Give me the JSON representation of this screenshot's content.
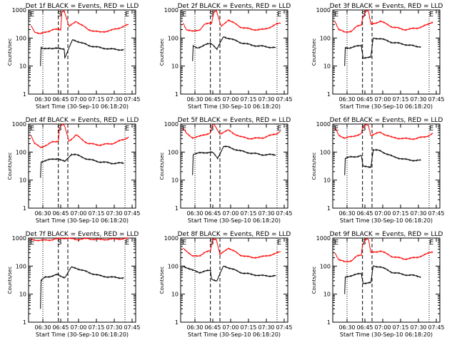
{
  "colors": {
    "background": "#ffffff",
    "axes": "#000000",
    "events": "#000000",
    "lld": "#ff0000"
  },
  "chart_data": [
    {
      "type": "line",
      "title": "Det 1f BLACK = Events, RED = LLD",
      "xlabel": "Start Time (30-Sep-10 06:18:20)",
      "ylabel": "Counts/sec",
      "xticks": [
        "06:30",
        "06:45",
        "07:00",
        "07:15",
        "07:30",
        "07:45"
      ],
      "yticks": [
        "1",
        "10",
        "100",
        "1000"
      ],
      "yscale": "log",
      "ylim": [
        1,
        1000
      ],
      "xlim_minutes": [
        0,
        90
      ],
      "markers": [
        "S",
        "E",
        "E"
      ],
      "series": [
        {
          "name": "Events",
          "color": "#000000",
          "x": [
            10,
            10.5,
            12,
            18,
            20,
            30,
            30.5,
            37,
            40,
            50,
            60,
            70,
            80
          ],
          "y": [
            10,
            45,
            40,
            45,
            42,
            42,
            20,
            85,
            80,
            55,
            45,
            40,
            38
          ]
        },
        {
          "name": "LLD",
          "color": "#ff0000",
          "x": [
            2,
            5,
            10,
            16,
            20,
            27,
            28,
            30,
            34,
            40,
            50,
            60,
            70,
            80,
            84
          ],
          "y": [
            280,
            170,
            140,
            170,
            200,
            200,
            900,
            950,
            250,
            400,
            200,
            160,
            190,
            260,
            300
          ]
        }
      ],
      "vlines_dotted": [
        12,
        81
      ],
      "vlines_dashed": [
        25,
        33
      ]
    },
    {
      "type": "line",
      "title": "Det 2f BLACK = Events, RED = LLD",
      "xlabel": "Start Time (30-Sep-10 06:18:20)",
      "ylabel": "Counts/sec",
      "xticks": [
        "06:30",
        "06:45",
        "07:00",
        "07:15",
        "07:30",
        "07:45"
      ],
      "yticks": [
        "1",
        "10",
        "100",
        "1000"
      ],
      "yscale": "log",
      "ylim": [
        1,
        1000
      ],
      "xlim_minutes": [
        0,
        90
      ],
      "markers": [
        "S",
        "E",
        "E"
      ],
      "series": [
        {
          "name": "Events",
          "color": "#000000",
          "x": [
            10,
            10.5,
            14,
            20,
            25,
            27,
            30.5,
            36,
            40,
            50,
            60,
            70,
            80
          ],
          "y": [
            15,
            50,
            45,
            55,
            65,
            60,
            40,
            110,
            100,
            70,
            55,
            50,
            45
          ]
        },
        {
          "name": "LLD",
          "color": "#ff0000",
          "x": [
            2,
            5,
            10,
            16,
            20,
            26,
            28,
            30,
            34,
            40,
            50,
            60,
            70,
            80,
            84
          ],
          "y": [
            350,
            200,
            170,
            200,
            300,
            350,
            900,
            950,
            250,
            450,
            250,
            200,
            200,
            300,
            350
          ]
        }
      ],
      "vlines_dotted": [
        12,
        81
      ],
      "vlines_dashed": [
        25,
        33
      ]
    },
    {
      "type": "line",
      "title": "Det 3f BLACK = Events, RED = LLD",
      "xlabel": "Start Time (30-Sep-10 06:18:20)",
      "ylabel": "Counts/sec",
      "xticks": [
        "06:30",
        "06:45",
        "07:00",
        "07:15",
        "07:30",
        "07:45"
      ],
      "yticks": [
        "1",
        "10",
        "100",
        "1000"
      ],
      "yscale": "log",
      "ylim": [
        1,
        1000
      ],
      "xlim_minutes": [
        0,
        90
      ],
      "markers": [
        "S",
        "E",
        "E"
      ],
      "series": [
        {
          "name": "Events",
          "color": "#000000",
          "x": [
            10,
            10.5,
            14,
            20,
            24,
            25.5,
            32,
            34,
            40,
            50,
            60,
            70,
            74
          ],
          "y": [
            10,
            45,
            45,
            50,
            55,
            20,
            20,
            100,
            95,
            70,
            60,
            50,
            50
          ]
        },
        {
          "name": "LLD",
          "color": "#ff0000",
          "x": [
            2,
            5,
            10,
            16,
            20,
            24,
            25,
            28,
            30,
            32,
            40,
            50,
            60,
            70,
            80,
            84
          ],
          "y": [
            400,
            200,
            160,
            180,
            250,
            300,
            500,
            950,
            900,
            300,
            400,
            250,
            200,
            220,
            300,
            380
          ]
        }
      ],
      "vlines_dotted": [
        12,
        81
      ],
      "vlines_dashed": [
        25,
        33
      ]
    },
    {
      "type": "line",
      "title": "Det 4f BLACK = Events, RED = LLD",
      "xlabel": "Start Time (30-Sep-10 06:18:20)",
      "ylabel": "Counts/sec",
      "xticks": [
        "06:30",
        "06:45",
        "07:00",
        "07:15",
        "07:30",
        "07:45"
      ],
      "yticks": [
        "1",
        "10",
        "100",
        "1000"
      ],
      "yscale": "log",
      "ylim": [
        1,
        1000
      ],
      "xlim_minutes": [
        0,
        90
      ],
      "markers": [
        "S",
        "E",
        "E"
      ],
      "series": [
        {
          "name": "Events",
          "color": "#000000",
          "x": [
            10,
            10.5,
            14,
            20,
            25,
            26,
            30.5,
            36,
            40,
            50,
            60,
            70,
            80
          ],
          "y": [
            12,
            45,
            50,
            55,
            60,
            55,
            45,
            85,
            80,
            55,
            45,
            40,
            40
          ]
        },
        {
          "name": "LLD",
          "color": "#ff0000",
          "x": [
            2,
            5,
            10,
            16,
            20,
            25,
            26,
            28,
            30,
            34,
            40,
            50,
            60,
            70,
            80,
            84
          ],
          "y": [
            400,
            200,
            150,
            180,
            230,
            250,
            700,
            950,
            900,
            250,
            400,
            200,
            180,
            200,
            280,
            350
          ]
        }
      ],
      "vlines_dotted": [
        12,
        81
      ],
      "vlines_dashed": [
        25,
        33
      ]
    },
    {
      "type": "line",
      "title": "Det 5f BLACK = Events, RED = LLD",
      "xlabel": "Start Time (30-Sep-10 06:18:20)",
      "ylabel": "Counts/sec",
      "xticks": [
        "06:30",
        "06:45",
        "07:00",
        "07:15",
        "07:30",
        "07:45"
      ],
      "yticks": [
        "1",
        "10",
        "100",
        "1000"
      ],
      "yscale": "log",
      "ylim": [
        1,
        1000
      ],
      "xlim_minutes": [
        0,
        90
      ],
      "markers": [
        "S",
        "E",
        "E"
      ],
      "series": [
        {
          "name": "Events",
          "color": "#000000",
          "x": [
            10,
            10.5,
            14,
            20,
            25,
            27,
            31,
            36,
            40,
            50,
            60,
            70,
            80
          ],
          "y": [
            15,
            85,
            90,
            95,
            100,
            95,
            60,
            160,
            150,
            110,
            90,
            80,
            80
          ]
        },
        {
          "name": "LLD",
          "color": "#ff0000",
          "x": [
            2,
            5,
            10,
            16,
            20,
            25,
            27,
            28,
            30,
            33,
            40,
            50,
            60,
            70,
            80,
            84
          ],
          "y": [
            700,
            450,
            330,
            360,
            420,
            480,
            900,
            950,
            700,
            450,
            600,
            350,
            300,
            330,
            450,
            550
          ]
        }
      ],
      "vlines_dotted": [
        12,
        81
      ],
      "vlines_dashed": [
        25,
        33
      ]
    },
    {
      "type": "line",
      "title": "Det 6f BLACK = Events, RED = LLD",
      "xlabel": "Start Time (30-Sep-10 06:18:20)",
      "ylabel": "Counts/sec",
      "xticks": [
        "06:30",
        "06:45",
        "07:00",
        "07:15",
        "07:30",
        "07:45"
      ],
      "yticks": [
        "1",
        "10",
        "100",
        "1000"
      ],
      "yscale": "log",
      "ylim": [
        1,
        1000
      ],
      "xlim_minutes": [
        0,
        90
      ],
      "markers": [
        "S",
        "E",
        "E"
      ],
      "series": [
        {
          "name": "Events",
          "color": "#000000",
          "x": [
            10,
            10.5,
            14,
            20,
            24,
            25.5,
            32,
            34,
            40,
            50,
            60,
            70,
            74
          ],
          "y": [
            15,
            60,
            65,
            70,
            75,
            30,
            30,
            120,
            110,
            70,
            55,
            50,
            50
          ]
        },
        {
          "name": "LLD",
          "color": "#ff0000",
          "x": [
            2,
            5,
            10,
            16,
            20,
            24,
            25,
            28,
            30,
            32,
            40,
            50,
            60,
            70,
            80,
            84
          ],
          "y": [
            700,
            400,
            320,
            350,
            400,
            450,
            700,
            950,
            900,
            400,
            500,
            330,
            300,
            300,
            380,
            450
          ]
        }
      ],
      "vlines_dotted": [
        12,
        81
      ],
      "vlines_dashed": [
        25,
        33
      ]
    },
    {
      "type": "line",
      "title": "Det 7f BLACK = Events, RED = LLD",
      "xlabel": "Start Time (30-Sep-10 06:18:20)",
      "ylabel": "Counts/sec",
      "xticks": [
        "06:30",
        "06:45",
        "07:00",
        "07:15",
        "07:30",
        "07:45"
      ],
      "yticks": [
        "1",
        "10",
        "100",
        "1000"
      ],
      "yscale": "log",
      "ylim": [
        1,
        1000
      ],
      "xlim_minutes": [
        0,
        90
      ],
      "markers": [
        "S",
        "E",
        "E"
      ],
      "series": [
        {
          "name": "Events",
          "color": "#000000",
          "x": [
            10,
            10.5,
            14,
            20,
            25,
            26,
            30.5,
            36,
            40,
            50,
            60,
            70,
            80
          ],
          "y": [
            3,
            30,
            40,
            45,
            50,
            45,
            40,
            90,
            85,
            60,
            45,
            40,
            38
          ]
        },
        {
          "name": "LLD",
          "color": "#ff0000",
          "x": [
            2,
            10,
            20,
            28,
            30,
            40,
            50,
            60,
            70,
            80,
            84
          ],
          "y": [
            900,
            820,
            880,
            980,
            1000,
            900,
            950,
            880,
            920,
            950,
            960
          ]
        }
      ],
      "vlines_dotted": [
        12,
        81
      ],
      "vlines_dashed": [
        25,
        33
      ]
    },
    {
      "type": "line",
      "title": "Det 8f BLACK = Events, RED = LLD",
      "xlabel": "Start Time (30-Sep-10 06:18:20)",
      "ylabel": "Counts/sec",
      "xticks": [
        "06:30",
        "06:45",
        "07:00",
        "07:15",
        "07:30",
        "07:45"
      ],
      "yticks": [
        "1",
        "10",
        "100",
        "1000"
      ],
      "yscale": "log",
      "ylim": [
        1,
        1000
      ],
      "xlim_minutes": [
        0,
        90
      ],
      "markers": [
        "S",
        "E",
        "E"
      ],
      "series": [
        {
          "name": "Events",
          "color": "#000000",
          "x": [
            2,
            5,
            10,
            16,
            20,
            25,
            26,
            30.5,
            36,
            40,
            50,
            60,
            70,
            80
          ],
          "y": [
            100,
            90,
            70,
            60,
            65,
            70,
            35,
            30,
            100,
            90,
            60,
            50,
            45,
            45
          ]
        },
        {
          "name": "LLD",
          "color": "#ff0000",
          "x": [
            2,
            5,
            10,
            16,
            20,
            25,
            27,
            28,
            30,
            33,
            40,
            50,
            60,
            70,
            80,
            84
          ],
          "y": [
            450,
            350,
            220,
            240,
            300,
            350,
            900,
            950,
            900,
            250,
            450,
            250,
            200,
            220,
            280,
            330
          ]
        }
      ],
      "vlines_dotted": [
        12,
        81
      ],
      "vlines_dashed": [
        25,
        33
      ]
    },
    {
      "type": "line",
      "title": "Det 9f BLACK = Events, RED = LLD",
      "xlabel": "Start Time (30-Sep-10 06:18:20)",
      "ylabel": "Counts/sec",
      "xticks": [
        "06:30",
        "06:45",
        "07:00",
        "07:15",
        "07:30",
        "07:45"
      ],
      "yticks": [
        "1",
        "10",
        "100",
        "1000"
      ],
      "yscale": "log",
      "ylim": [
        1,
        1000
      ],
      "xlim_minutes": [
        0,
        90
      ],
      "markers": [
        "S",
        "E",
        "E"
      ],
      "series": [
        {
          "name": "Events",
          "color": "#000000",
          "x": [
            10,
            10.5,
            14,
            20,
            24,
            25.5,
            32,
            34,
            40,
            50,
            60,
            70,
            74
          ],
          "y": [
            10,
            40,
            45,
            50,
            55,
            25,
            25,
            100,
            95,
            60,
            50,
            45,
            42
          ]
        },
        {
          "name": "LLD",
          "color": "#ff0000",
          "x": [
            2,
            5,
            10,
            16,
            20,
            24,
            25,
            28,
            30,
            32,
            40,
            50,
            60,
            70,
            80,
            84
          ],
          "y": [
            300,
            170,
            140,
            160,
            220,
            250,
            600,
            950,
            900,
            300,
            350,
            220,
            180,
            200,
            280,
            330
          ]
        }
      ],
      "vlines_dotted": [
        12,
        81
      ],
      "vlines_dashed": [
        25,
        33
      ]
    }
  ]
}
